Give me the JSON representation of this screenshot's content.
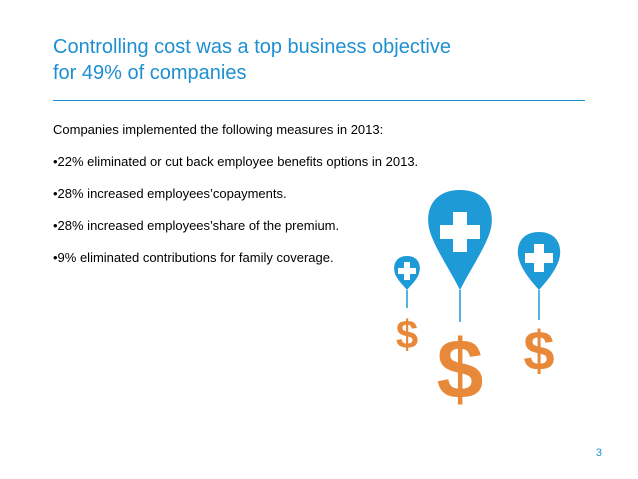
{
  "slide": {
    "title_line1": "Controlling cost was a top business objective",
    "title_line2": "for 49% of companies",
    "intro": "Companies implemented the following measures in 2013:",
    "bullets": [
      "•22% eliminated or cut back employee benefits options in 2013.",
      "•28% increased employees’copayments.",
      "•28% increased employees’share of the premium.",
      "•9% eliminated contributions for family coverage."
    ],
    "page_number": "3"
  },
  "art": {
    "icons": [
      "plus-icon",
      "dollar-icon"
    ],
    "balloon_color": "#1e9ad6",
    "dollar_color": "#e8893a"
  }
}
